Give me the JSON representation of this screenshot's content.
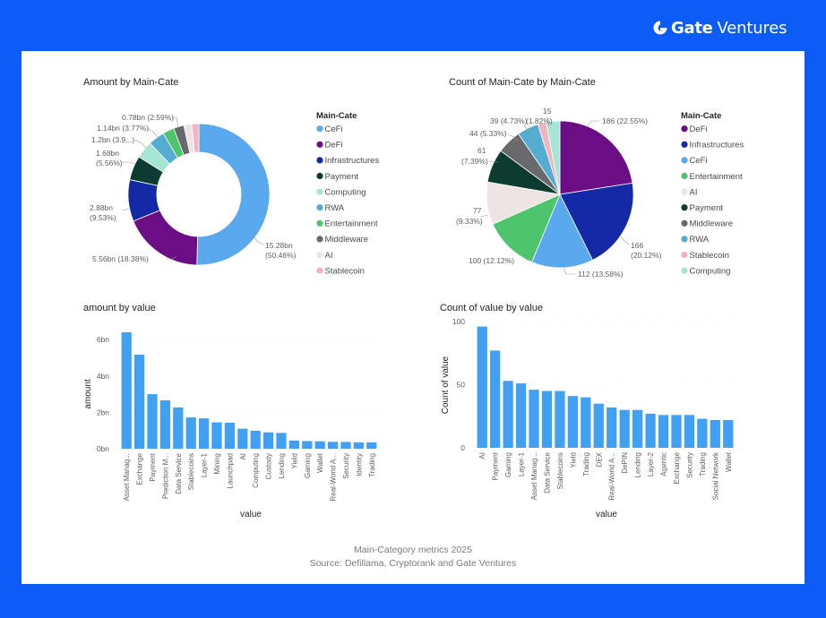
{
  "brand": {
    "name_bold": "Gate",
    "name_light": "Ventures",
    "icon": "gate-logo-icon"
  },
  "footer": {
    "line1": "Main-Category metrics 2025",
    "line2": "Source: Defillama, Cryptorank and Gate Ventures"
  },
  "chart_data": [
    {
      "type": "pie",
      "variant": "donut",
      "title": "Amount by Main-Cate",
      "legend_title": "Main-Cate",
      "legend_position": "right",
      "unit": "bn",
      "slices": [
        {
          "label": "CeFi",
          "value": 15.28,
          "percent": 50.46,
          "data_label": "15.28bn",
          "data_label_2": "(50.46%)",
          "color": "#5aa9ee"
        },
        {
          "label": "DeFi",
          "value": 5.56,
          "percent": 18.38,
          "data_label": "5.56bn (18.38%)",
          "data_label_2": "",
          "color": "#6b0e85"
        },
        {
          "label": "Infrastructures",
          "value": 2.88,
          "percent": 9.53,
          "data_label": "2.88bn",
          "data_label_2": "(9.53%)",
          "color": "#1329a6"
        },
        {
          "label": "Payment",
          "value": 1.68,
          "percent": 5.56,
          "data_label": "1.68bn",
          "data_label_2": "(5.56%)",
          "color": "#0c3b30"
        },
        {
          "label": "Computing",
          "value": 1.2,
          "percent": 3.96,
          "data_label": "1.2bn (3.9...)",
          "data_label_2": "",
          "color": "#a6e4d6"
        },
        {
          "label": "RWA",
          "value": 1.14,
          "percent": 3.77,
          "data_label": "1.14bn (3.77%)",
          "data_label_2": "",
          "color": "#54add0"
        },
        {
          "label": "Entertainment",
          "value": 0.78,
          "percent": 2.59,
          "data_label": "0.78bn (2.59%)",
          "data_label_2": "",
          "color": "#4ec46c"
        },
        {
          "label": "Middleware",
          "value": 0.72,
          "percent": 2.38,
          "data_label": "",
          "data_label_2": "",
          "color": "#67696d"
        },
        {
          "label": "AI",
          "value": 0.55,
          "percent": 1.82,
          "data_label": "",
          "data_label_2": "",
          "color": "#ece3e3"
        },
        {
          "label": "Stablecoin",
          "value": 0.49,
          "percent": 1.62,
          "data_label": "",
          "data_label_2": "",
          "color": "#f2b4be"
        }
      ]
    },
    {
      "type": "pie",
      "title": "Count of Main-Cate by Main-Cate",
      "legend_title": "Main-Cate",
      "legend_position": "right",
      "slices": [
        {
          "label": "DeFi",
          "value": 186,
          "percent": 22.55,
          "data_label": "186 (22.55%)",
          "data_label_2": "",
          "color": "#6b0e85"
        },
        {
          "label": "Infrastructures",
          "value": 166,
          "percent": 20.12,
          "data_label": "166",
          "data_label_2": "(20.12%)",
          "color": "#1329a6"
        },
        {
          "label": "CeFi",
          "value": 112,
          "percent": 13.58,
          "data_label": "112 (13.58%)",
          "data_label_2": "",
          "color": "#5aa9ee"
        },
        {
          "label": "Entertainment",
          "value": 100,
          "percent": 12.12,
          "data_label": "100 (12.12%)",
          "data_label_2": "",
          "color": "#4ec46c"
        },
        {
          "label": "AI",
          "value": 77,
          "percent": 9.33,
          "data_label": "77",
          "data_label_2": "(9.33%)",
          "color": "#ece3e3"
        },
        {
          "label": "Payment",
          "value": 61,
          "percent": 7.39,
          "data_label": "61",
          "data_label_2": "(7.39%)",
          "color": "#0c3b30"
        },
        {
          "label": "Middleware",
          "value": 44,
          "percent": 5.33,
          "data_label": "44 (5.33%)",
          "data_label_2": "",
          "color": "#67696d"
        },
        {
          "label": "RWA",
          "value": 39,
          "percent": 4.73,
          "data_label": "39 (4.73%)",
          "data_label_2": "",
          "color": "#54add0"
        },
        {
          "label": "Stablecoin",
          "value": 15,
          "percent": 1.82,
          "data_label": "(1.82%)",
          "data_label_2": "15",
          "color": "#f2b4be"
        },
        {
          "label": "Computing",
          "value": 25,
          "percent": 3.03,
          "data_label": "",
          "data_label_2": "",
          "color": "#a6e4d6"
        }
      ]
    },
    {
      "type": "bar",
      "title": "amount by value",
      "xlabel": "value",
      "ylabel": "amount",
      "ylim": [
        0,
        6.5
      ],
      "yticks": [
        0,
        2,
        4,
        6
      ],
      "ytick_labels": [
        "0bn",
        "2bn",
        "4bn",
        "6bn"
      ],
      "grid": true,
      "bar_color": "#42a0f2",
      "categories": [
        "Asset Manag...",
        "Exchange",
        "Payment",
        "Prediction M...",
        "Data Service",
        "Stablecoins",
        "Layer-1",
        "Mining",
        "Launchpad",
        "AI",
        "Computing",
        "Custody",
        "Lending",
        "Yield",
        "Gaming",
        "Wallet",
        "Real-World A...",
        "Security",
        "Identity",
        "Trading"
      ],
      "values": [
        6.4,
        5.17,
        3.0,
        2.66,
        2.27,
        1.72,
        1.67,
        1.45,
        1.43,
        1.1,
        0.99,
        0.9,
        0.87,
        0.45,
        0.42,
        0.41,
        0.38,
        0.37,
        0.35,
        0.35
      ]
    },
    {
      "type": "bar",
      "title": "Count of value by value",
      "xlabel": "value",
      "ylabel": "Count of value",
      "ylim": [
        0,
        100
      ],
      "yticks": [
        0,
        50,
        100
      ],
      "ytick_labels": [
        "0",
        "50",
        "100"
      ],
      "grid": true,
      "bar_color": "#42a0f2",
      "categories": [
        "AI",
        "Payment",
        "Gaming",
        "Layer-1",
        "Asset Manag...",
        "Data Service",
        "Stablecoins",
        "Yield",
        "Trading",
        "DEX",
        "Real-World A...",
        "DePIN",
        "Lending",
        "Layer-2",
        "Agentic",
        "Exchange",
        "Security",
        "Trading",
        "Social Network",
        "Wallet"
      ],
      "values": [
        96,
        77,
        53,
        51,
        46,
        45,
        45,
        41,
        40,
        35,
        32,
        30,
        30,
        27,
        26,
        26,
        26,
        23,
        22,
        22
      ]
    }
  ]
}
